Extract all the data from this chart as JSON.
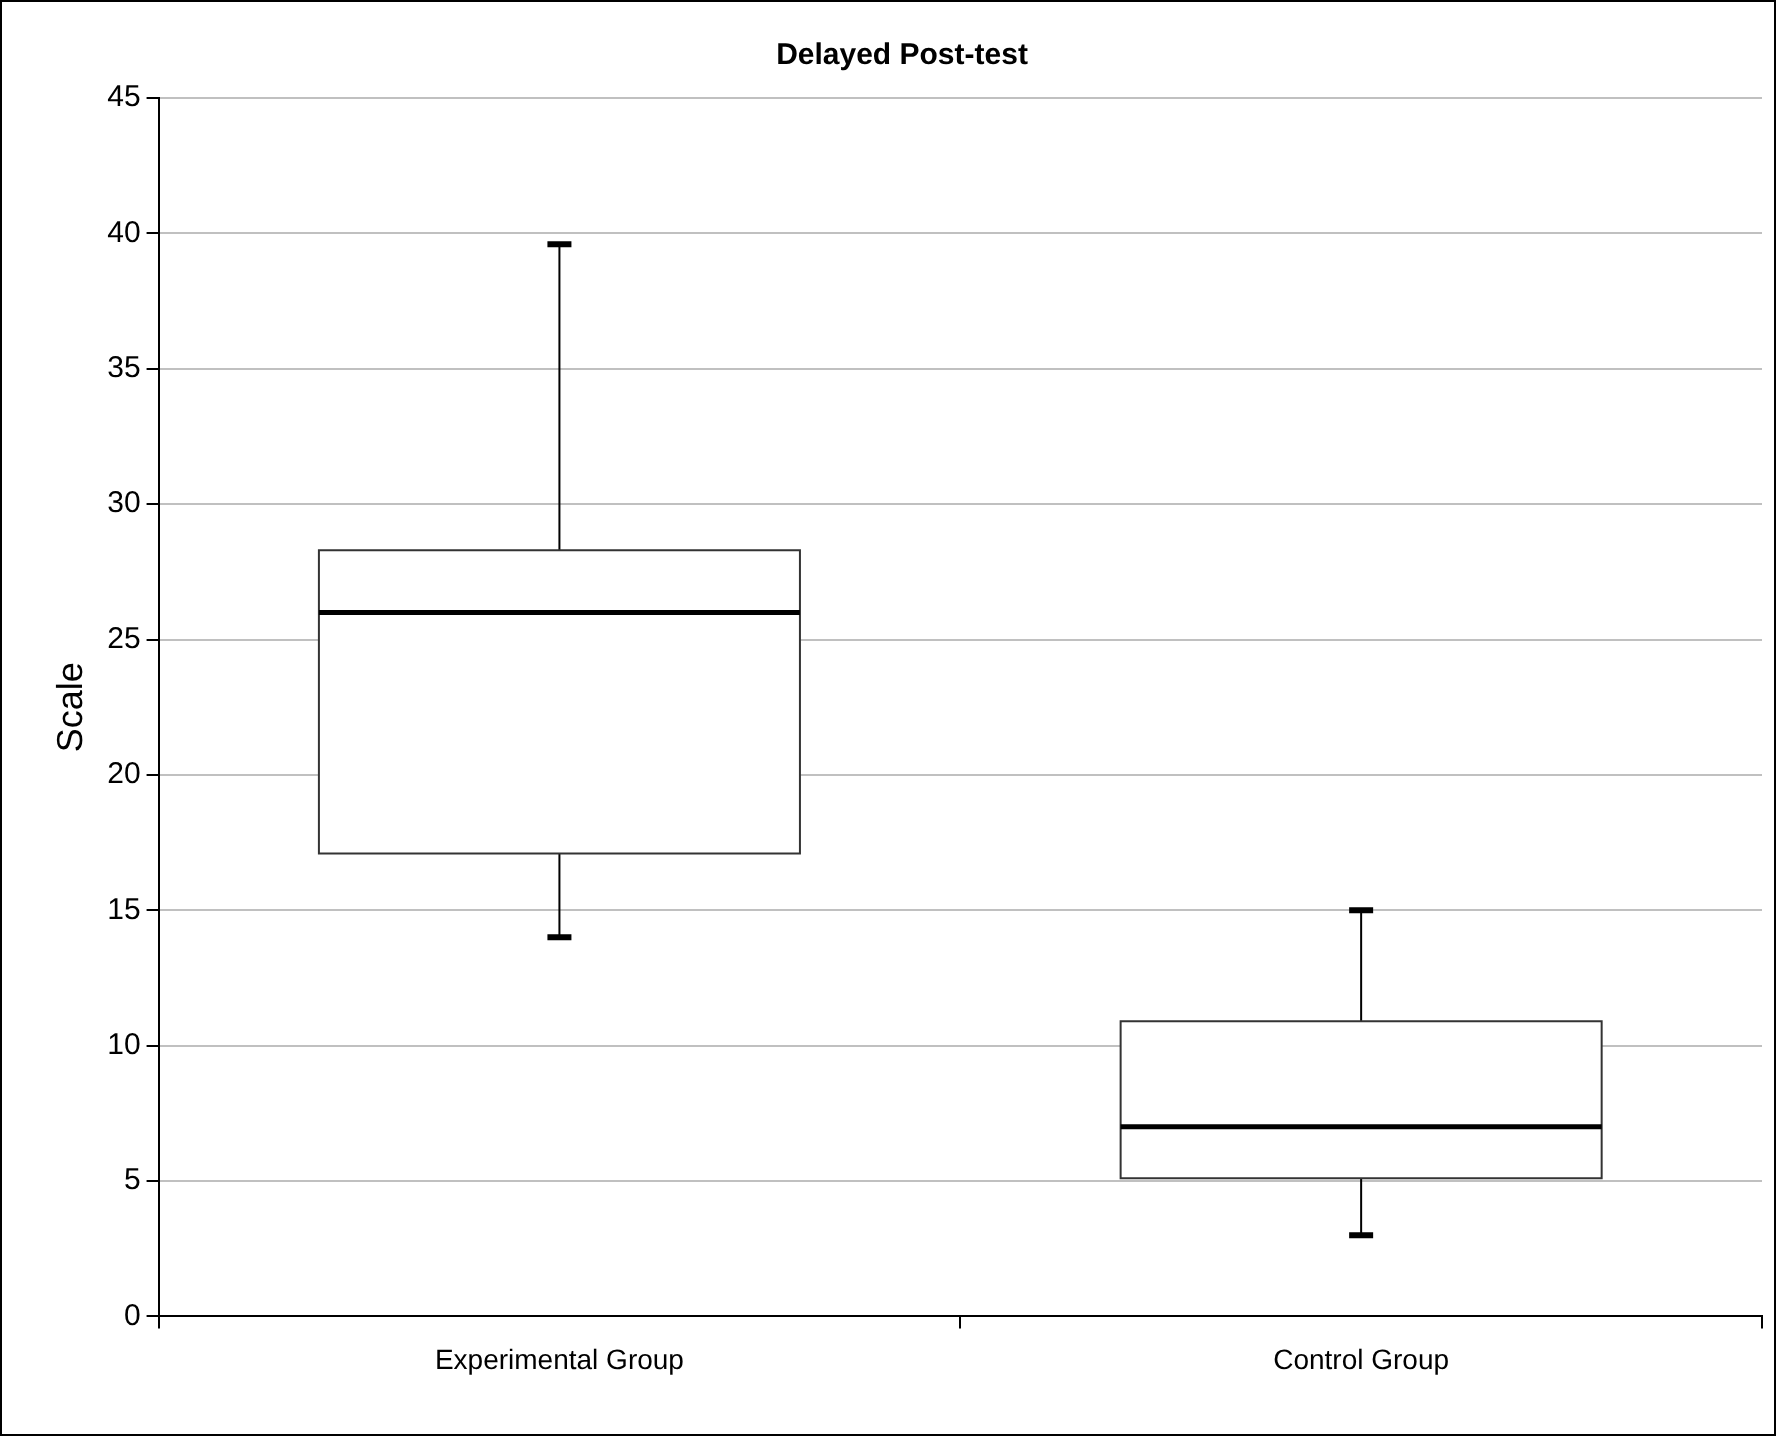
{
  "chart_data": {
    "type": "box",
    "title": "Delayed Post-test",
    "ylabel": "Scale",
    "categories": [
      "Experimental Group",
      "Control Group"
    ],
    "boxes": [
      {
        "low": 14,
        "q1": 17.1,
        "median": 26,
        "q3": 28.3,
        "high": 39.6
      },
      {
        "low": 3,
        "q1": 5.1,
        "median": 7,
        "q3": 10.9,
        "high": 15
      }
    ],
    "ylim": [
      0,
      45
    ],
    "yticks": [
      0,
      5,
      10,
      15,
      20,
      25,
      30,
      35,
      40,
      45
    ],
    "grid": "y",
    "legend": false
  }
}
